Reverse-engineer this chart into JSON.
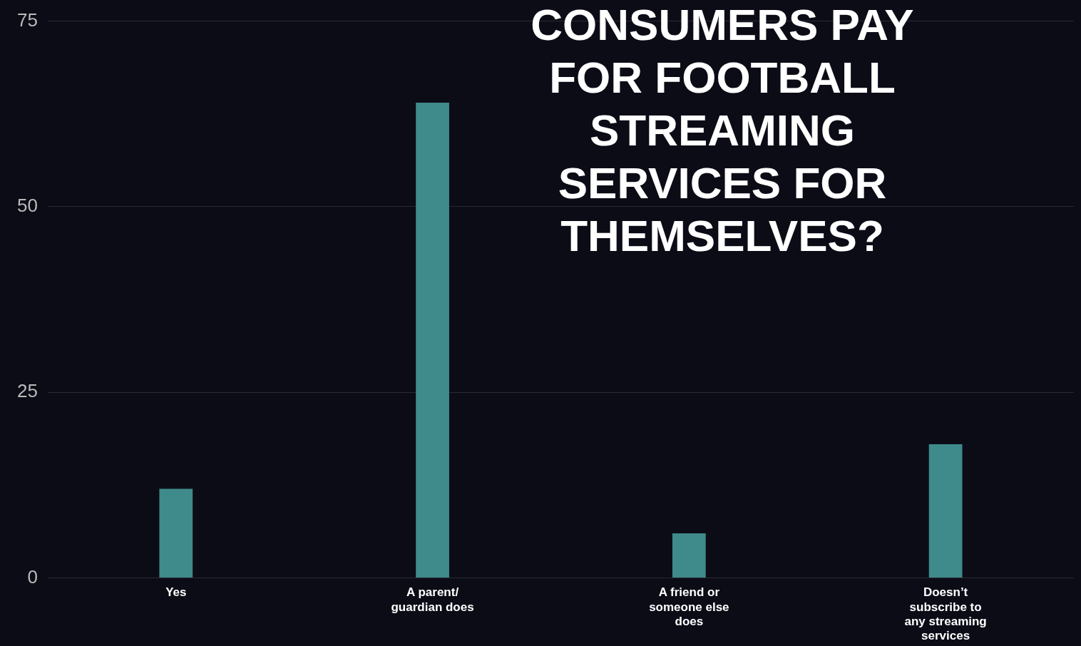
{
  "chart_data": {
    "type": "bar",
    "title": "CONSUMERS PAY FOR FOOTBALL STREAMING SERVICES FOR THEMSELVES?",
    "categories": [
      "Yes",
      "A parent/ guardian does",
      "A friend or someone else does",
      "Doesn’t subscribe to any streaming services"
    ],
    "values": [
      12,
      64,
      6,
      18
    ],
    "color": "#3f8a8a",
    "ylim": [
      0,
      75
    ],
    "yticks": [
      0,
      25,
      50,
      75
    ],
    "grid": "y",
    "legend": false
  }
}
